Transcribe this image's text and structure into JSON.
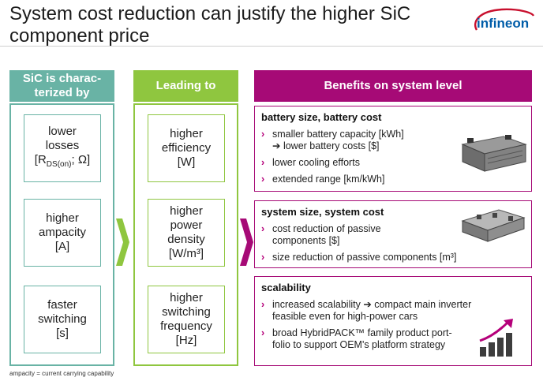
{
  "title": "System cost reduction can justify the higher SiC component price",
  "logo_text": "infineon",
  "colors": {
    "teal": "#69b3a5",
    "green": "#8fc63f",
    "magenta": "#a60a76",
    "bullet": "#b5007a"
  },
  "column1": {
    "header": "SiC is charac-terized by",
    "items": [
      {
        "line1": "lower",
        "line2": "losses",
        "line3_pre": "[R",
        "line3_sub": "DS(on)",
        "line3_post": "; Ω]"
      },
      {
        "line1": "higher",
        "line2": "ampacity",
        "line3": "[A]"
      },
      {
        "line1": "faster",
        "line2": "switching",
        "line3": "[s]"
      }
    ]
  },
  "column2": {
    "header": "Leading to",
    "items": [
      {
        "lines": [
          "higher",
          "efficiency",
          "[W]"
        ]
      },
      {
        "lines": [
          "higher",
          "power",
          "density",
          "[W/m³]"
        ]
      },
      {
        "lines": [
          "higher",
          "switching",
          "frequency",
          "[Hz]"
        ]
      }
    ]
  },
  "column3": {
    "header": "Benefits on system level",
    "panels": [
      {
        "title": "battery size, battery cost",
        "bullets": [
          {
            "text": "smaller battery capacity [kWh]",
            "text2": "➔ lower battery costs [$]"
          },
          {
            "text": "lower cooling efforts"
          },
          {
            "text": "extended range [km/kWh]"
          }
        ],
        "image": "battery-pack-image"
      },
      {
        "title": "system size, system cost",
        "bullets": [
          {
            "text": "cost reduction of passive",
            "text2": "components [$]"
          },
          {
            "text": "size reduction of passive components [m³]"
          }
        ],
        "image": "inverter-module-image"
      },
      {
        "title": "scalability",
        "bullets": [
          {
            "text": "increased scalability ➔ compact main inverter",
            "text2": "feasible even for high-power cars"
          },
          {
            "text": "broad HybridPACK™ family product port-",
            "text2": "folio to support OEM's platform strategy"
          }
        ],
        "image": "growth-chart-icon"
      }
    ]
  },
  "bullet_glyph": "›",
  "footnote": "ampacity = current carrying capability"
}
